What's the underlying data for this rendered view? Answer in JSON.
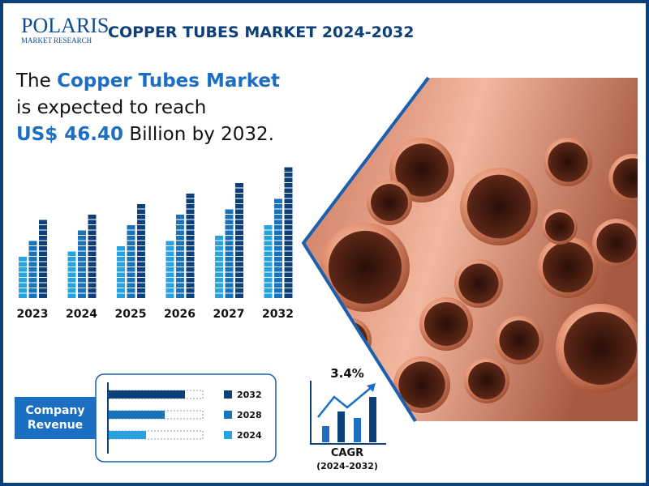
{
  "logo": {
    "name": "POLARIS",
    "tagline": "MARKET RESEARCH"
  },
  "header": {
    "title": "COPPER TUBES MARKET 2024-2032"
  },
  "headline": {
    "lead": "The",
    "market": "Copper Tubes Market",
    "line2": "is expected to reach",
    "amount": "US$ 46.40",
    "tail": "Billion by 2032."
  },
  "years": [
    "2023",
    "2024",
    "2025",
    "2026",
    "2027",
    "2032"
  ],
  "company_revenue": {
    "label": "Company Revenue",
    "legend": [
      "2032",
      "2028",
      "2024"
    ]
  },
  "cagr": {
    "value": "3.4%",
    "label": "CAGR",
    "period": "(2024-2032)"
  }
}
